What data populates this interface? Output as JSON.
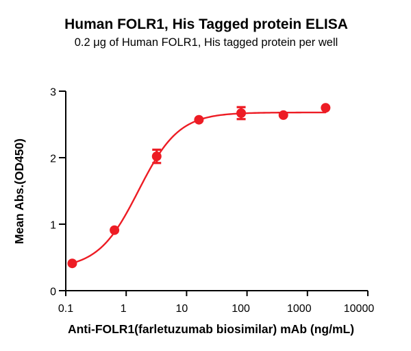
{
  "background_color": "#ffffff",
  "text_color": "#000000",
  "chart_data": {
    "type": "scatter",
    "title": "Human FOLR1, His Tagged protein ELISA",
    "subtitle": "0.2 μg of Human FOLR1, His tagged protein per well",
    "xlabel": "Anti-FOLR1(farletuzumab biosimilar) mAb (ng/mL)",
    "ylabel": "Mean Abs.(OD450)",
    "x_scale": "log10",
    "xlim": [
      0.1,
      10000
    ],
    "ylim": [
      0,
      3
    ],
    "x_ticks": [
      0.1,
      1,
      10,
      100,
      1000,
      10000
    ],
    "x_tick_labels": [
      "0.1",
      "1",
      "10",
      "100",
      "1000",
      "10000"
    ],
    "y_ticks": [
      0,
      1,
      2,
      3
    ],
    "y_tick_labels": [
      "0",
      "1",
      "2",
      "3"
    ],
    "grid": false,
    "legend": "none",
    "series": [
      {
        "name": "Anti-FOLR1 (farletuzumab biosimilar) mAb",
        "marker": "circle",
        "color": "#ED1C24",
        "x": [
          0.128,
          0.64,
          3.2,
          16,
          80,
          400,
          2000
        ],
        "y": [
          0.41,
          0.91,
          2.02,
          2.57,
          2.67,
          2.64,
          2.75
        ],
        "y_err": [
          0,
          0,
          0.1,
          0,
          0.09,
          0,
          0
        ]
      }
    ],
    "curve_fit": {
      "model": "4PL",
      "bottom": 0.33,
      "top": 2.68,
      "ec50_ng_ml": 1.6,
      "hill": 1.3,
      "x_range": [
        0.128,
        2000
      ],
      "color": "#ED1C24"
    }
  }
}
